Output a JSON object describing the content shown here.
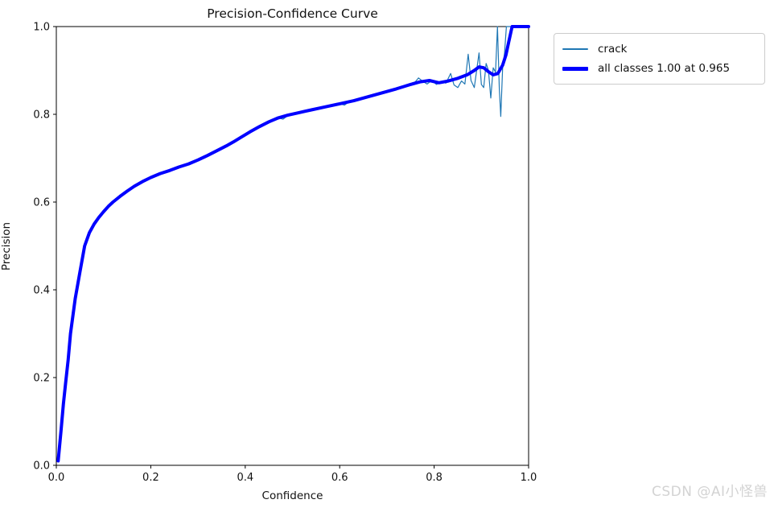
{
  "title": "Precision-Confidence Curve",
  "axes": {
    "xlabel": "Confidence",
    "ylabel": "Precision",
    "x_tick_labels": [
      "0.0",
      "0.2",
      "0.4",
      "0.6",
      "0.8",
      "1.0"
    ],
    "y_tick_labels": [
      "0.0",
      "0.2",
      "0.4",
      "0.6",
      "0.8",
      "1.0"
    ],
    "x_tick_values": [
      0.0,
      0.2,
      0.4,
      0.6,
      0.8,
      1.0
    ],
    "y_tick_values": [
      0.0,
      0.2,
      0.4,
      0.6,
      0.8,
      1.0
    ]
  },
  "legend": {
    "items": [
      {
        "label": "crack",
        "color": "#1f77b4",
        "weight": "thin"
      },
      {
        "label": "all classes 1.00 at 0.965",
        "color": "#0000ff",
        "weight": "thick"
      }
    ]
  },
  "watermark": "CSDN @AI小怪兽",
  "colors": {
    "crack_line": "#1f77b4",
    "all_classes_line": "#0000ff",
    "axis": "#000000",
    "legend_border": "#cccccc",
    "watermark": "#d3d3d3"
  },
  "chart_data": {
    "type": "line",
    "title": "Precision-Confidence Curve",
    "xlabel": "Confidence",
    "ylabel": "Precision",
    "xlim": [
      0,
      1
    ],
    "ylim": [
      0,
      1
    ],
    "grid": false,
    "legend_position": "outside-upper-right",
    "annotation": "all classes reach precision 1.00 at confidence 0.965",
    "series": [
      {
        "name": "crack",
        "color": "#1f77b4",
        "linewidth": 1.2,
        "points": [
          [
            0.004,
            0.01
          ],
          [
            0.01,
            0.08
          ],
          [
            0.015,
            0.14
          ],
          [
            0.02,
            0.19
          ],
          [
            0.025,
            0.24
          ],
          [
            0.03,
            0.3
          ],
          [
            0.04,
            0.38
          ],
          [
            0.05,
            0.44
          ],
          [
            0.06,
            0.5
          ],
          [
            0.07,
            0.53
          ],
          [
            0.08,
            0.55
          ],
          [
            0.09,
            0.565
          ],
          [
            0.1,
            0.578
          ],
          [
            0.11,
            0.59
          ],
          [
            0.12,
            0.6
          ],
          [
            0.135,
            0.613
          ],
          [
            0.15,
            0.625
          ],
          [
            0.165,
            0.636
          ],
          [
            0.185,
            0.648
          ],
          [
            0.2,
            0.656
          ],
          [
            0.22,
            0.665
          ],
          [
            0.24,
            0.672
          ],
          [
            0.26,
            0.68
          ],
          [
            0.28,
            0.687
          ],
          [
            0.3,
            0.696
          ],
          [
            0.32,
            0.706
          ],
          [
            0.34,
            0.717
          ],
          [
            0.36,
            0.728
          ],
          [
            0.375,
            0.737
          ],
          [
            0.39,
            0.747
          ],
          [
            0.41,
            0.76
          ],
          [
            0.43,
            0.772
          ],
          [
            0.45,
            0.783
          ],
          [
            0.46,
            0.787
          ],
          [
            0.47,
            0.792
          ],
          [
            0.48,
            0.789
          ],
          [
            0.49,
            0.797
          ],
          [
            0.5,
            0.801
          ],
          [
            0.52,
            0.806
          ],
          [
            0.54,
            0.81
          ],
          [
            0.56,
            0.814
          ],
          [
            0.58,
            0.82
          ],
          [
            0.6,
            0.824
          ],
          [
            0.61,
            0.821
          ],
          [
            0.62,
            0.829
          ],
          [
            0.64,
            0.834
          ],
          [
            0.66,
            0.841
          ],
          [
            0.68,
            0.848
          ],
          [
            0.7,
            0.853
          ],
          [
            0.72,
            0.858
          ],
          [
            0.74,
            0.867
          ],
          [
            0.76,
            0.874
          ],
          [
            0.767,
            0.883
          ],
          [
            0.775,
            0.876
          ],
          [
            0.785,
            0.869
          ],
          [
            0.795,
            0.877
          ],
          [
            0.805,
            0.868
          ],
          [
            0.815,
            0.874
          ],
          [
            0.825,
            0.871
          ],
          [
            0.835,
            0.893
          ],
          [
            0.842,
            0.867
          ],
          [
            0.85,
            0.861
          ],
          [
            0.858,
            0.876
          ],
          [
            0.865,
            0.869
          ],
          [
            0.872,
            0.937
          ],
          [
            0.878,
            0.877
          ],
          [
            0.885,
            0.861
          ],
          [
            0.89,
            0.9
          ],
          [
            0.895,
            0.94
          ],
          [
            0.9,
            0.868
          ],
          [
            0.905,
            0.861
          ],
          [
            0.91,
            0.916
          ],
          [
            0.915,
            0.9
          ],
          [
            0.92,
            0.837
          ],
          [
            0.925,
            0.906
          ],
          [
            0.93,
            0.896
          ],
          [
            0.934,
            1.0
          ],
          [
            0.938,
            0.858
          ],
          [
            0.941,
            0.795
          ],
          [
            0.945,
            0.905
          ],
          [
            0.949,
            0.94
          ],
          [
            0.953,
            1.0
          ],
          [
            1.0,
            1.0
          ]
        ]
      },
      {
        "name": "all classes 1.00 at 0.965",
        "color": "#0000ff",
        "linewidth": 4,
        "points": [
          [
            0.004,
            0.01
          ],
          [
            0.01,
            0.08
          ],
          [
            0.015,
            0.14
          ],
          [
            0.02,
            0.19
          ],
          [
            0.025,
            0.24
          ],
          [
            0.03,
            0.3
          ],
          [
            0.04,
            0.38
          ],
          [
            0.05,
            0.44
          ],
          [
            0.06,
            0.5
          ],
          [
            0.07,
            0.53
          ],
          [
            0.08,
            0.55
          ],
          [
            0.09,
            0.565
          ],
          [
            0.1,
            0.578
          ],
          [
            0.11,
            0.59
          ],
          [
            0.12,
            0.6
          ],
          [
            0.135,
            0.613
          ],
          [
            0.15,
            0.625
          ],
          [
            0.165,
            0.636
          ],
          [
            0.185,
            0.648
          ],
          [
            0.2,
            0.656
          ],
          [
            0.22,
            0.665
          ],
          [
            0.24,
            0.672
          ],
          [
            0.26,
            0.68
          ],
          [
            0.28,
            0.687
          ],
          [
            0.3,
            0.696
          ],
          [
            0.32,
            0.706
          ],
          [
            0.34,
            0.717
          ],
          [
            0.36,
            0.728
          ],
          [
            0.375,
            0.737
          ],
          [
            0.39,
            0.747
          ],
          [
            0.41,
            0.76
          ],
          [
            0.43,
            0.772
          ],
          [
            0.45,
            0.783
          ],
          [
            0.47,
            0.792
          ],
          [
            0.49,
            0.798
          ],
          [
            0.51,
            0.803
          ],
          [
            0.54,
            0.81
          ],
          [
            0.57,
            0.817
          ],
          [
            0.6,
            0.824
          ],
          [
            0.63,
            0.831
          ],
          [
            0.66,
            0.84
          ],
          [
            0.69,
            0.849
          ],
          [
            0.72,
            0.858
          ],
          [
            0.75,
            0.868
          ],
          [
            0.77,
            0.874
          ],
          [
            0.79,
            0.877
          ],
          [
            0.81,
            0.872
          ],
          [
            0.83,
            0.876
          ],
          [
            0.85,
            0.882
          ],
          [
            0.87,
            0.89
          ],
          [
            0.885,
            0.9
          ],
          [
            0.895,
            0.908
          ],
          [
            0.905,
            0.906
          ],
          [
            0.915,
            0.897
          ],
          [
            0.925,
            0.89
          ],
          [
            0.935,
            0.893
          ],
          [
            0.945,
            0.912
          ],
          [
            0.952,
            0.935
          ],
          [
            0.958,
            0.965
          ],
          [
            0.965,
            1.0
          ],
          [
            1.0,
            1.0
          ]
        ]
      }
    ]
  }
}
